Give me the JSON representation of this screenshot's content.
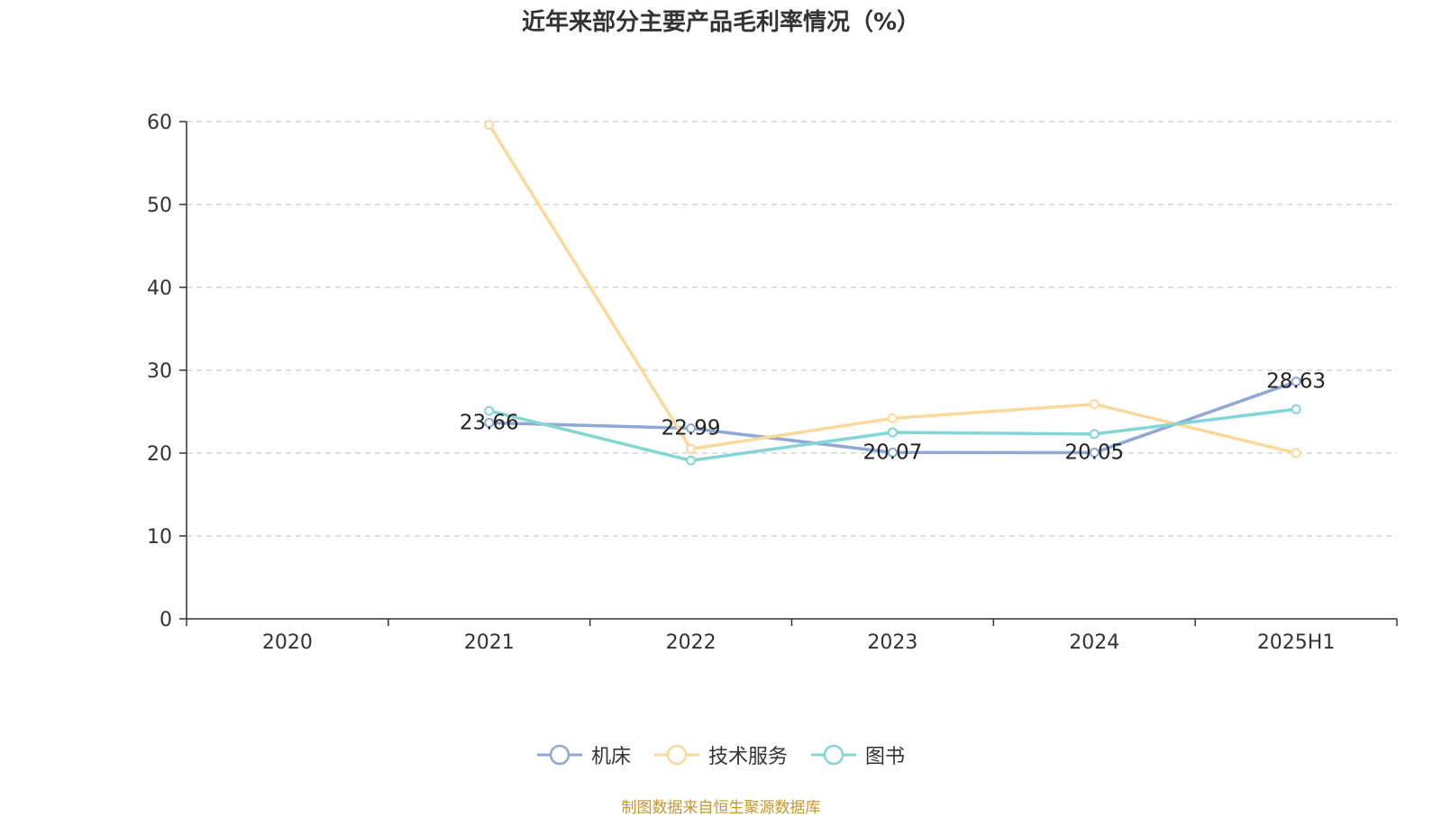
{
  "chart_data": {
    "type": "line",
    "title": "近年来部分主要产品毛利率情况（%）",
    "categories": [
      "2020",
      "2021",
      "2022",
      "2023",
      "2024",
      "2025H1"
    ],
    "ylim": [
      0,
      60
    ],
    "yticks": [
      0,
      10,
      20,
      30,
      40,
      50,
      60
    ],
    "grid": true,
    "legend_position": "bottom",
    "series": [
      {
        "name": "机床",
        "color": "#8fa8d6",
        "values": [
          null,
          23.66,
          22.99,
          20.07,
          20.05,
          28.63
        ],
        "labels": [
          "",
          "23.66",
          "22.99",
          "20.07",
          "20.05",
          "28.63"
        ]
      },
      {
        "name": "技术服务",
        "color": "#fbd99a",
        "values": [
          null,
          59.6,
          20.5,
          24.2,
          25.9,
          20.0
        ],
        "labels": [
          "",
          "",
          "",
          "",
          "",
          ""
        ]
      },
      {
        "name": "图书",
        "color": "#84d6d6",
        "values": [
          null,
          25.1,
          19.1,
          22.5,
          22.3,
          25.3
        ],
        "labels": [
          "",
          "",
          "",
          "",
          "",
          ""
        ]
      }
    ]
  },
  "source_note": "制图数据来自恒生聚源数据库"
}
